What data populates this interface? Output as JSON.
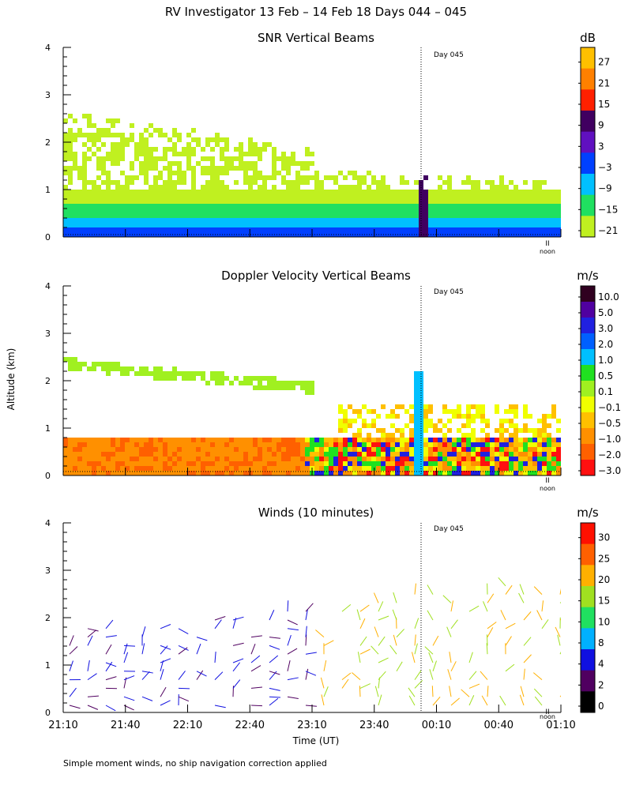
{
  "header": {
    "title": "RV Investigator  13 Feb – 14 Feb 18 Days 044 – 045",
    "ylabel": "Altitude (km)",
    "xlabel": "Time (UT)",
    "footnote": "Simple moment winds, no ship navigation correction applied",
    "day_marker": "Day 045",
    "noon_label": "noon",
    "noon_symbol": "II"
  },
  "chart_data": [
    {
      "type": "heatmap",
      "id": "snr",
      "title": "SNR Vertical Beams",
      "unit": "dB",
      "ylim": [
        0,
        4
      ],
      "y_ticks": [
        "0",
        "1",
        "2",
        "3",
        "4"
      ],
      "colorbar": {
        "labels": [
          "27",
          "21",
          "15",
          "9",
          "3",
          "−3",
          "−9",
          "−15",
          "−21"
        ],
        "colors": [
          "#ffc000",
          "#ff8000",
          "#ff2000",
          "#400060",
          "#6010c0",
          "#0040ff",
          "#00c0ff",
          "#20e060",
          "#c0f020"
        ]
      }
    },
    {
      "type": "heatmap",
      "id": "doppler",
      "title": "Doppler Velocity Vertical Beams",
      "unit": "m/s",
      "ylim": [
        0,
        4
      ],
      "y_ticks": [
        "0",
        "1",
        "2",
        "3",
        "4"
      ],
      "colorbar": {
        "labels": [
          "10.0",
          "5.0",
          "3.0",
          "2.0",
          "1.0",
          "0.5",
          "0.1",
          "−0.1",
          "−0.5",
          "−1.0",
          "−2.0",
          "−3.0"
        ],
        "colors": [
          "#300020",
          "#5000a0",
          "#2020e0",
          "#0060ff",
          "#00c0ff",
          "#20e020",
          "#a0f020",
          "#f0ff00",
          "#ffc000",
          "#ff9000",
          "#ff6000",
          "#ff1010"
        ]
      }
    },
    {
      "type": "scatter",
      "id": "winds",
      "title": "Winds (10 minutes)",
      "unit": "m/s",
      "ylim": [
        0,
        4
      ],
      "y_ticks": [
        "0",
        "1",
        "2",
        "3",
        "4"
      ],
      "x_ticks": [
        "21:10",
        "21:40",
        "22:10",
        "22:40",
        "23:10",
        "23:40",
        "00:10",
        "00:40",
        "01:10"
      ],
      "colorbar": {
        "labels": [
          "30",
          "25",
          "20",
          "15",
          "10",
          "8",
          "4",
          "2",
          "0"
        ],
        "colors": [
          "#ff1000",
          "#ff6000",
          "#ffb000",
          "#a0e020",
          "#20e060",
          "#00b0ff",
          "#1010e0",
          "#500060",
          "#000000"
        ]
      }
    }
  ]
}
